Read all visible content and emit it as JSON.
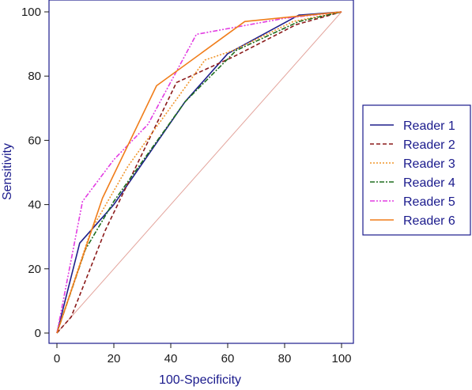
{
  "chart_data": {
    "type": "line",
    "xlabel": "100-Specificity",
    "ylabel": "Sensitivity",
    "xlim": [
      0,
      100
    ],
    "ylim": [
      0,
      100
    ],
    "xticks": [
      0,
      20,
      40,
      60,
      80,
      100
    ],
    "yticks": [
      0,
      20,
      40,
      60,
      80,
      100
    ],
    "grid": false,
    "legend_position": "right",
    "reference_line": {
      "x": [
        0,
        100
      ],
      "y": [
        0,
        100
      ],
      "color": "#e3a49c"
    },
    "series": [
      {
        "name": "Reader 1",
        "color": "#1f1f8a",
        "dash": "",
        "x": [
          0,
          8,
          20,
          45,
          60,
          85,
          100
        ],
        "y": [
          0,
          28,
          40,
          72,
          87,
          99,
          100
        ]
      },
      {
        "name": "Reader 2",
        "color": "#8b1a1a",
        "dash": "5,3",
        "x": [
          0,
          5,
          17,
          42,
          62,
          84,
          100
        ],
        "y": [
          0,
          5,
          32,
          78,
          86,
          96,
          100
        ]
      },
      {
        "name": "Reader 3",
        "color": "#f0952a",
        "dash": "2,2",
        "x": [
          0,
          12,
          25,
          52,
          62,
          83,
          100
        ],
        "y": [
          0,
          32,
          52,
          85,
          88,
          97,
          100
        ]
      },
      {
        "name": "Reader 4",
        "color": "#1e6e1e",
        "dash": "6,2,2,2",
        "x": [
          0,
          10,
          20,
          45,
          63,
          85,
          100
        ],
        "y": [
          0,
          26,
          41,
          72,
          88,
          97,
          100
        ]
      },
      {
        "name": "Reader 5",
        "color": "#e23de2",
        "dash": "6,2,2,2,2,2",
        "x": [
          0,
          9,
          20,
          32,
          49,
          80,
          100
        ],
        "y": [
          0,
          41,
          54,
          65,
          93,
          98,
          100
        ]
      },
      {
        "name": "Reader 6",
        "color": "#f07d1a",
        "dash": "",
        "x": [
          0,
          16,
          35,
          66,
          100
        ],
        "y": [
          0,
          42,
          77,
          97,
          100
        ]
      }
    ]
  }
}
